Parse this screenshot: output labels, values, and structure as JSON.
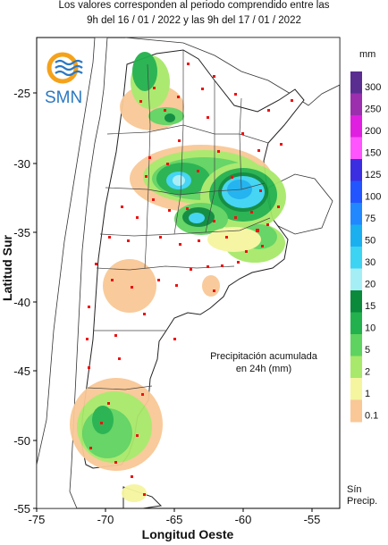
{
  "header": {
    "line1": "Los valores corresponden al periodo comprendido entre las",
    "line2": "9h del 16 / 01 / 2022  y las 9h del 17 / 01 / 2022"
  },
  "logo": {
    "text": "SMN"
  },
  "axes": {
    "xlabel": "Longitud Oeste",
    "ylabel": "Latitud Sur",
    "x_ticks": [
      "-75",
      "-70",
      "-65",
      "-60",
      "-55"
    ],
    "y_ticks": [
      "-25",
      "-30",
      "-35",
      "-40",
      "-45",
      "-50",
      "-55"
    ]
  },
  "annotation": {
    "line1": "Precipitación acumulada",
    "line2": "en 24h (mm)"
  },
  "legend": {
    "unit": "mm",
    "no_precip_label_1": "Sín",
    "no_precip_label_2": "Precip.",
    "items": [
      {
        "label": "300",
        "color": "#5a2d91"
      },
      {
        "label": "250",
        "color": "#9b2fae"
      },
      {
        "label": "200",
        "color": "#e020e0"
      },
      {
        "label": "150",
        "color": "#ff55ff"
      },
      {
        "label": "125",
        "color": "#3b2ee0"
      },
      {
        "label": "100",
        "color": "#2255ff"
      },
      {
        "label": "75",
        "color": "#2288ff"
      },
      {
        "label": "50",
        "color": "#1ab0f0"
      },
      {
        "label": "30",
        "color": "#3dd3f3"
      },
      {
        "label": "20",
        "color": "#a5eef5"
      },
      {
        "label": "15",
        "color": "#0a8a3a"
      },
      {
        "label": "10",
        "color": "#22b14c"
      },
      {
        "label": "5",
        "color": "#5fd35f"
      },
      {
        "label": "2",
        "color": "#a8e86a"
      },
      {
        "label": "1",
        "color": "#f5f5a0"
      },
      {
        "label": "0.1",
        "color": "#f9c896"
      }
    ]
  }
}
